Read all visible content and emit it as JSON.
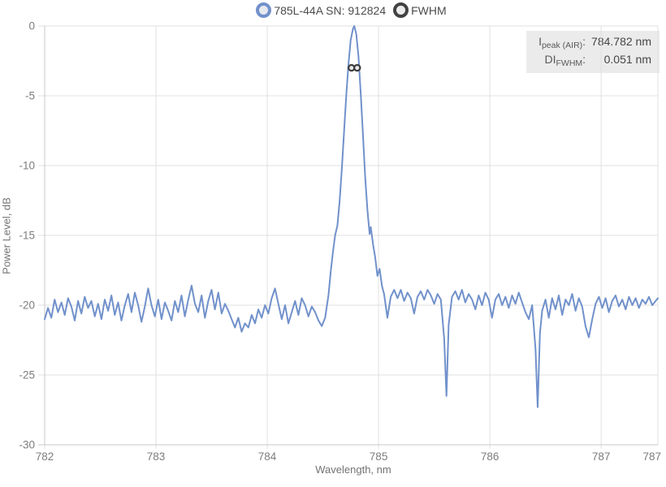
{
  "legend": {
    "series_label": "785L-44A SN: 912824",
    "fwhm_label": "FWHM"
  },
  "info_box": {
    "rows": [
      {
        "main": "I",
        "sub": "peak (AIR)",
        "colon": ":",
        "value": "784.782 nm"
      },
      {
        "main": "DI",
        "sub": "FWHM",
        "colon": ":",
        "value": "0.051 nm"
      }
    ]
  },
  "chart_data": {
    "type": "line",
    "title": "",
    "xlabel": "Wavelength, nm",
    "ylabel": "Power Level, dB",
    "xlim": [
      782,
      787.51
    ],
    "ylim": [
      -30,
      0
    ],
    "xticks": [
      782,
      783,
      784,
      785,
      786,
      787
    ],
    "x_edge_label": "787",
    "yticks": [
      0,
      -5,
      -10,
      -15,
      -20,
      -25,
      -30
    ],
    "grid": true,
    "legend_position": "top-center",
    "peak": {
      "wavelength_nm": 784.782,
      "fwhm_nm": 0.051,
      "peak_level_db": 0
    },
    "fwhm_marker": {
      "name": "FWHM",
      "y_db": -3,
      "x_left": 784.757,
      "x_right": 784.808
    },
    "colors": {
      "series_line": "#7191cb",
      "fwhm_marker": "#3d3d3d",
      "fwhm_marker_fill": "#e9e9e9",
      "grid": "#e0e0e0",
      "axis_border": "#c9c9c9",
      "tick_text": "#7d7d7d"
    },
    "series": [
      {
        "name": "785L-44A SN: 912824",
        "points": [
          [
            782.0,
            -21.0
          ],
          [
            782.03,
            -20.2
          ],
          [
            782.06,
            -20.9
          ],
          [
            782.09,
            -19.6
          ],
          [
            782.12,
            -20.5
          ],
          [
            782.15,
            -19.8
          ],
          [
            782.18,
            -20.7
          ],
          [
            782.21,
            -19.5
          ],
          [
            782.24,
            -20.1
          ],
          [
            782.27,
            -21.1
          ],
          [
            782.3,
            -19.7
          ],
          [
            782.33,
            -20.6
          ],
          [
            782.36,
            -19.4
          ],
          [
            782.39,
            -20.2
          ],
          [
            782.42,
            -19.7
          ],
          [
            782.45,
            -20.8
          ],
          [
            782.48,
            -19.9
          ],
          [
            782.51,
            -21.0
          ],
          [
            782.54,
            -19.6
          ],
          [
            782.57,
            -20.4
          ],
          [
            782.6,
            -19.3
          ],
          [
            782.63,
            -20.7
          ],
          [
            782.66,
            -19.8
          ],
          [
            782.69,
            -21.1
          ],
          [
            782.72,
            -20.0
          ],
          [
            782.75,
            -19.2
          ],
          [
            782.78,
            -20.5
          ],
          [
            782.81,
            -19.1
          ],
          [
            782.84,
            -20.0
          ],
          [
            782.87,
            -21.2
          ],
          [
            782.9,
            -20.1
          ],
          [
            782.93,
            -18.8
          ],
          [
            782.96,
            -20.0
          ],
          [
            782.99,
            -20.8
          ],
          [
            783.02,
            -19.6
          ],
          [
            783.05,
            -21.0
          ],
          [
            783.08,
            -19.8
          ],
          [
            783.11,
            -20.4
          ],
          [
            783.14,
            -21.1
          ],
          [
            783.17,
            -19.7
          ],
          [
            783.2,
            -20.5
          ],
          [
            783.23,
            -19.3
          ],
          [
            783.26,
            -20.8
          ],
          [
            783.29,
            -19.6
          ],
          [
            783.32,
            -18.6
          ],
          [
            783.35,
            -19.9
          ],
          [
            783.38,
            -20.5
          ],
          [
            783.41,
            -19.3
          ],
          [
            783.44,
            -20.9
          ],
          [
            783.47,
            -19.7
          ],
          [
            783.5,
            -18.9
          ],
          [
            783.53,
            -20.3
          ],
          [
            783.56,
            -19.1
          ],
          [
            783.59,
            -20.6
          ],
          [
            783.62,
            -19.9
          ],
          [
            783.65,
            -20.4
          ],
          [
            783.68,
            -21.0
          ],
          [
            783.71,
            -21.6
          ],
          [
            783.74,
            -20.9
          ],
          [
            783.77,
            -21.9
          ],
          [
            783.8,
            -21.3
          ],
          [
            783.83,
            -21.6
          ],
          [
            783.86,
            -20.7
          ],
          [
            783.89,
            -21.3
          ],
          [
            783.92,
            -20.3
          ],
          [
            783.95,
            -20.9
          ],
          [
            783.98,
            -20.0
          ],
          [
            784.01,
            -20.6
          ],
          [
            784.04,
            -19.5
          ],
          [
            784.07,
            -18.8
          ],
          [
            784.1,
            -19.9
          ],
          [
            784.13,
            -21.0
          ],
          [
            784.16,
            -20.0
          ],
          [
            784.19,
            -21.3
          ],
          [
            784.22,
            -20.5
          ],
          [
            784.25,
            -19.7
          ],
          [
            784.28,
            -20.7
          ],
          [
            784.31,
            -19.5
          ],
          [
            784.34,
            -20.0
          ],
          [
            784.37,
            -20.8
          ],
          [
            784.4,
            -20.1
          ],
          [
            784.43,
            -20.5
          ],
          [
            784.46,
            -21.1
          ],
          [
            784.49,
            -21.5
          ],
          [
            784.52,
            -20.9
          ],
          [
            784.55,
            -19.3
          ],
          [
            784.57,
            -17.6
          ],
          [
            784.59,
            -16.2
          ],
          [
            784.61,
            -15.0
          ],
          [
            784.63,
            -14.3
          ],
          [
            784.65,
            -12.6
          ],
          [
            784.67,
            -10.2
          ],
          [
            784.69,
            -7.6
          ],
          [
            784.71,
            -5.0
          ],
          [
            784.73,
            -2.7
          ],
          [
            784.75,
            -1.0
          ],
          [
            784.77,
            -0.2
          ],
          [
            784.782,
            0.0
          ],
          [
            784.8,
            -0.6
          ],
          [
            784.82,
            -2.2
          ],
          [
            784.84,
            -4.8
          ],
          [
            784.86,
            -7.8
          ],
          [
            784.88,
            -10.8
          ],
          [
            784.9,
            -13.2
          ],
          [
            784.92,
            -14.9
          ],
          [
            784.93,
            -14.4
          ],
          [
            784.95,
            -15.6
          ],
          [
            784.97,
            -16.6
          ],
          [
            784.99,
            -17.9
          ],
          [
            785.01,
            -17.4
          ],
          [
            785.03,
            -18.6
          ],
          [
            785.05,
            -19.2
          ],
          [
            785.08,
            -20.9
          ],
          [
            785.11,
            -19.4
          ],
          [
            785.14,
            -18.9
          ],
          [
            785.17,
            -19.5
          ],
          [
            785.2,
            -18.9
          ],
          [
            785.23,
            -19.7
          ],
          [
            785.26,
            -19.1
          ],
          [
            785.29,
            -19.5
          ],
          [
            785.32,
            -20.6
          ],
          [
            785.35,
            -19.4
          ],
          [
            785.38,
            -19.0
          ],
          [
            785.41,
            -19.6
          ],
          [
            785.44,
            -18.9
          ],
          [
            785.47,
            -19.3
          ],
          [
            785.5,
            -19.9
          ],
          [
            785.53,
            -19.2
          ],
          [
            785.56,
            -19.6
          ],
          [
            785.59,
            -22.4
          ],
          [
            785.61,
            -26.5
          ],
          [
            785.63,
            -21.4
          ],
          [
            785.66,
            -19.4
          ],
          [
            785.69,
            -19.0
          ],
          [
            785.72,
            -19.6
          ],
          [
            785.75,
            -18.9
          ],
          [
            785.78,
            -19.8
          ],
          [
            785.81,
            -19.2
          ],
          [
            785.84,
            -19.6
          ],
          [
            785.87,
            -20.3
          ],
          [
            785.9,
            -19.3
          ],
          [
            785.93,
            -20.0
          ],
          [
            785.96,
            -19.1
          ],
          [
            785.99,
            -19.6
          ],
          [
            786.02,
            -20.9
          ],
          [
            786.05,
            -19.6
          ],
          [
            786.08,
            -19.2
          ],
          [
            786.11,
            -20.0
          ],
          [
            786.14,
            -19.4
          ],
          [
            786.17,
            -20.2
          ],
          [
            786.2,
            -19.3
          ],
          [
            786.23,
            -19.9
          ],
          [
            786.26,
            -19.1
          ],
          [
            786.29,
            -19.8
          ],
          [
            786.32,
            -20.5
          ],
          [
            786.35,
            -21.0
          ],
          [
            786.38,
            -20.0
          ],
          [
            786.41,
            -23.1
          ],
          [
            786.43,
            -27.3
          ],
          [
            786.45,
            -22.0
          ],
          [
            786.47,
            -20.4
          ],
          [
            786.5,
            -19.6
          ],
          [
            786.53,
            -20.9
          ],
          [
            786.56,
            -19.5
          ],
          [
            786.59,
            -20.3
          ],
          [
            786.62,
            -19.3
          ],
          [
            786.65,
            -20.7
          ],
          [
            786.68,
            -19.6
          ],
          [
            786.71,
            -20.0
          ],
          [
            786.74,
            -19.2
          ],
          [
            786.77,
            -20.4
          ],
          [
            786.8,
            -19.5
          ],
          [
            786.83,
            -20.1
          ],
          [
            786.86,
            -21.5
          ],
          [
            786.89,
            -22.3
          ],
          [
            786.92,
            -21.0
          ],
          [
            786.95,
            -19.9
          ],
          [
            786.98,
            -19.4
          ],
          [
            787.01,
            -20.2
          ],
          [
            787.04,
            -19.5
          ],
          [
            787.07,
            -20.5
          ],
          [
            787.1,
            -19.7
          ],
          [
            787.13,
            -19.3
          ],
          [
            787.16,
            -20.1
          ],
          [
            787.19,
            -19.6
          ],
          [
            787.22,
            -20.3
          ],
          [
            787.25,
            -19.4
          ],
          [
            787.28,
            -20.0
          ],
          [
            787.31,
            -19.5
          ],
          [
            787.34,
            -20.2
          ],
          [
            787.37,
            -19.6
          ],
          [
            787.4,
            -19.9
          ],
          [
            787.43,
            -19.4
          ],
          [
            787.46,
            -20.0
          ],
          [
            787.51,
            -19.5
          ]
        ]
      }
    ]
  }
}
